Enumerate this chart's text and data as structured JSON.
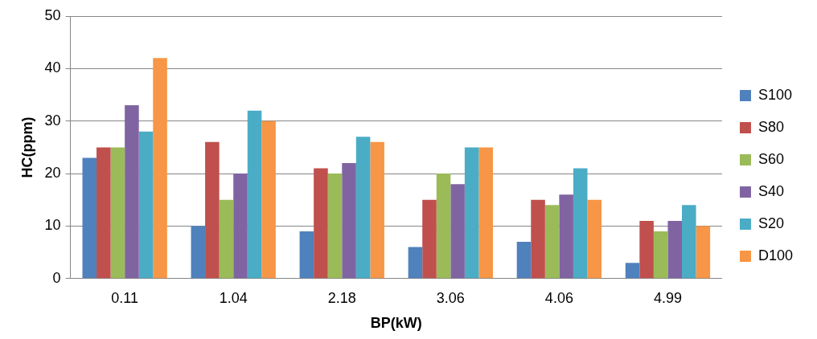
{
  "chart_data": {
    "type": "bar",
    "xlabel": "BP(kW)",
    "ylabel": "HC(ppm)",
    "categories": [
      "0.11",
      "1.04",
      "2.18",
      "3.06",
      "4.06",
      "4.99"
    ],
    "series": [
      {
        "name": "S100",
        "color": "#4f81bd",
        "values": [
          23,
          10,
          9,
          6,
          7,
          3
        ]
      },
      {
        "name": "S80",
        "color": "#c0504d",
        "values": [
          25,
          26,
          21,
          15,
          15,
          11
        ]
      },
      {
        "name": "S60",
        "color": "#9bbb59",
        "values": [
          25,
          15,
          20,
          20,
          14,
          9
        ]
      },
      {
        "name": "S40",
        "color": "#8064a2",
        "values": [
          33,
          20,
          22,
          18,
          16,
          11
        ]
      },
      {
        "name": "S20",
        "color": "#4bacc6",
        "values": [
          28,
          32,
          27,
          25,
          21,
          14
        ]
      },
      {
        "name": "D100",
        "color": "#f79646",
        "values": [
          42,
          30,
          26,
          25,
          15,
          10
        ]
      }
    ],
    "ylim": [
      0,
      50
    ],
    "yticks": [
      0,
      10,
      20,
      30,
      40,
      50
    ],
    "grid": "y",
    "legend": "right"
  }
}
